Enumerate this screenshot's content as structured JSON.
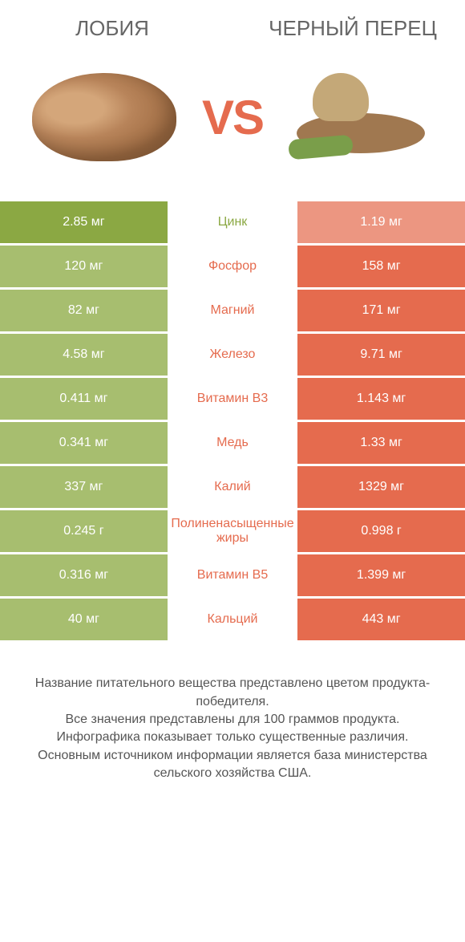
{
  "colors": {
    "left": "#8ba843",
    "right": "#e56b4e",
    "left_dim": "#a7be6f",
    "right_dim": "#ec9681",
    "white": "#ffffff"
  },
  "header": {
    "left_title": "ЛОБИЯ",
    "right_title": "ЧЕРНЫЙ ПЕРЕЦ",
    "vs": "VS"
  },
  "rows": [
    {
      "label": "Цинк",
      "left": "2.85 мг",
      "right": "1.19 мг",
      "winner": "left"
    },
    {
      "label": "Фосфор",
      "left": "120 мг",
      "right": "158 мг",
      "winner": "right"
    },
    {
      "label": "Магний",
      "left": "82 мг",
      "right": "171 мг",
      "winner": "right"
    },
    {
      "label": "Железо",
      "left": "4.58 мг",
      "right": "9.71 мг",
      "winner": "right"
    },
    {
      "label": "Витамин B3",
      "left": "0.411 мг",
      "right": "1.143 мг",
      "winner": "right"
    },
    {
      "label": "Медь",
      "left": "0.341 мг",
      "right": "1.33 мг",
      "winner": "right"
    },
    {
      "label": "Калий",
      "left": "337 мг",
      "right": "1329 мг",
      "winner": "right"
    },
    {
      "label": "Полиненасыщенные жиры",
      "left": "0.245 г",
      "right": "0.998 г",
      "winner": "right"
    },
    {
      "label": "Витамин B5",
      "left": "0.316 мг",
      "right": "1.399 мг",
      "winner": "right"
    },
    {
      "label": "Кальций",
      "left": "40 мг",
      "right": "443 мг",
      "winner": "right"
    }
  ],
  "footer": {
    "line1": "Название питательного вещества представлено цветом продукта-победителя.",
    "line2": "Все значения представлены для 100 граммов продукта.",
    "line3": "Инфографика показывает только существенные различия.",
    "line4": "Основным источником информации является база министерства сельского хозяйства США."
  }
}
